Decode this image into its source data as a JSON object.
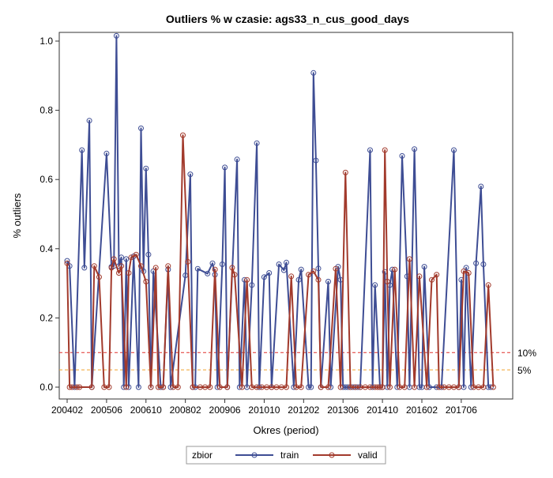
{
  "chart_data": {
    "type": "line",
    "title": "Outliers % w czasie: ags33_n_cus_good_days",
    "xlabel": "Okres (period)",
    "ylabel": "% outliers",
    "ylim": [
      0,
      1.05
    ],
    "xlim": [
      200402,
      201812
    ],
    "y_ticks": [
      0.0,
      0.2,
      0.4,
      0.6,
      0.8,
      1.0
    ],
    "y_tick_labels": [
      "0.0",
      "0.2",
      "0.4",
      "0.6",
      "0.8",
      "1.0"
    ],
    "x_ticks": [
      "200402",
      "200506",
      "200610",
      "200802",
      "200906",
      "201010",
      "201202",
      "201306",
      "201410",
      "201602",
      "201706"
    ],
    "grid": false,
    "legend": {
      "title": "zbior",
      "position": "bottom",
      "entries": [
        "train",
        "valid"
      ]
    },
    "colors": {
      "train": "#3e4d94",
      "valid": "#a23a2c",
      "ref10": "#e0312b",
      "ref5": "#f0a22e"
    },
    "reference_lines": [
      {
        "value": 0.1,
        "label": "10%",
        "color": "#e0312b"
      },
      {
        "value": 0.05,
        "label": "5%",
        "color": "#f0a22e"
      }
    ],
    "series": [
      {
        "name": "train",
        "x": [
          "200402",
          "200403",
          "200405",
          "200408",
          "200409",
          "200411",
          "200412",
          "200506",
          "200508",
          "200509",
          "200510",
          "200511",
          "200512",
          "200601",
          "200602",
          "200603",
          "200605",
          "200607",
          "200608",
          "200609",
          "200610",
          "200611",
          "200612",
          "200701",
          "200704",
          "200705",
          "200707",
          "200708",
          "200802",
          "200804",
          "200805",
          "200806",
          "200807",
          "200811",
          "200901",
          "200902",
          "200903",
          "200905",
          "200906",
          "200907",
          "200911",
          "200912",
          "201002",
          "201003",
          "201005",
          "201007",
          "201008",
          "201010",
          "201012",
          "201101",
          "201104",
          "201106",
          "201107",
          "201110",
          "201112",
          "201201",
          "201204",
          "201205",
          "201206",
          "201207",
          "201208",
          "201209",
          "201212",
          "201301",
          "201304",
          "201305",
          "201306",
          "201307",
          "201308",
          "201309",
          "201310",
          "201311",
          "201312",
          "201401",
          "201405",
          "201406",
          "201407",
          "201409",
          "201410",
          "201411",
          "201412",
          "201501",
          "201502",
          "201504",
          "201506",
          "201508",
          "201509",
          "201511",
          "201601",
          "201602",
          "201603",
          "201605",
          "201608",
          "201610",
          "201703",
          "201705",
          "201706",
          "201707",
          "201708",
          "201710",
          "201712",
          "201802",
          "201803",
          "201805",
          "201806"
        ],
        "values": [
          0.365,
          0.35,
          0.0,
          0.685,
          0.345,
          0.77,
          0.0,
          0.675,
          0.348,
          0.35,
          1.015,
          0.35,
          0.375,
          0.0,
          0.37,
          0.0,
          0.378,
          0.0,
          0.748,
          0.335,
          0.632,
          0.383,
          0.0,
          0.335,
          0.0,
          0.0,
          0.34,
          0.0,
          0.323,
          0.615,
          0.0,
          0.0,
          0.342,
          0.328,
          0.358,
          0.325,
          0.0,
          0.355,
          0.635,
          0.0,
          0.658,
          0.0,
          0.31,
          0.0,
          0.295,
          0.705,
          0.0,
          0.318,
          0.33,
          0.0,
          0.355,
          0.338,
          0.36,
          0.0,
          0.31,
          0.34,
          0.0,
          0.0,
          0.908,
          0.655,
          0.343,
          0.0,
          0.305,
          0.0,
          0.348,
          0.31,
          0.0,
          0.0,
          0.0,
          0.0,
          0.0,
          0.0,
          0.0,
          0.0,
          0.685,
          0.0,
          0.295,
          0.0,
          0.0,
          0.333,
          0.0,
          0.295,
          0.34,
          0.0,
          0.668,
          0.32,
          0.0,
          0.688,
          0.0,
          0.0,
          0.348,
          0.0,
          0.0,
          0.0,
          0.685,
          0.0,
          0.31,
          0.0,
          0.345,
          0.0,
          0.358,
          0.58,
          0.355,
          0.0,
          0.0
        ]
      },
      {
        "name": "valid",
        "x": [
          "200402",
          "200403",
          "200404",
          "200406",
          "200407",
          "200412",
          "200501",
          "200503",
          "200505",
          "200507",
          "200508",
          "200509",
          "200511",
          "200512",
          "200602",
          "200603",
          "200604",
          "200606",
          "200608",
          "200610",
          "200612",
          "200702",
          "200703",
          "200705",
          "200707",
          "200709",
          "200711",
          "200801",
          "200803",
          "200805",
          "200808",
          "200810",
          "200812",
          "200902",
          "200904",
          "200907",
          "200909",
          "200910",
          "201001",
          "201003",
          "201005",
          "201007",
          "201009",
          "201011",
          "201101",
          "201103",
          "201105",
          "201107",
          "201109",
          "201111",
          "201201",
          "201204",
          "201206",
          "201208",
          "201209",
          "201212",
          "201303",
          "201305",
          "201307",
          "201309",
          "201311",
          "201401",
          "201403",
          "201405",
          "201407",
          "201408",
          "201409",
          "201410",
          "201411",
          "201412",
          "201501",
          "201503",
          "201505",
          "201507",
          "201509",
          "201511",
          "201601",
          "201604",
          "201606",
          "201608",
          "201609",
          "201611",
          "201701",
          "201703",
          "201705",
          "201707",
          "201709",
          "201711",
          "201801",
          "201803",
          "201805",
          "201807"
        ],
        "values": [
          0.358,
          0.0,
          0.0,
          0.0,
          0.0,
          0.0,
          0.35,
          0.318,
          0.0,
          0.0,
          0.345,
          0.37,
          0.33,
          0.35,
          0.0,
          0.33,
          0.375,
          0.383,
          0.35,
          0.305,
          0.0,
          0.345,
          0.0,
          0.0,
          0.35,
          0.0,
          0.0,
          0.728,
          0.362,
          0.0,
          0.0,
          0.0,
          0.0,
          0.34,
          0.0,
          0.0,
          0.345,
          0.325,
          0.0,
          0.31,
          0.0,
          0.0,
          0.0,
          0.0,
          0.0,
          0.0,
          0.0,
          0.0,
          0.32,
          0.0,
          0.0,
          0.325,
          0.335,
          0.31,
          0.0,
          0.0,
          0.342,
          0.0,
          0.62,
          0.0,
          0.0,
          0.0,
          0.0,
          0.0,
          0.0,
          0.0,
          0.0,
          0.0,
          0.685,
          0.305,
          0.0,
          0.34,
          0.0,
          0.0,
          0.37,
          0.0,
          0.32,
          0.0,
          0.31,
          0.325,
          0.0,
          0.0,
          0.0,
          0.0,
          0.0,
          0.335,
          0.33,
          0.0,
          0.0,
          0.0,
          0.295,
          0.0
        ]
      }
    ]
  }
}
